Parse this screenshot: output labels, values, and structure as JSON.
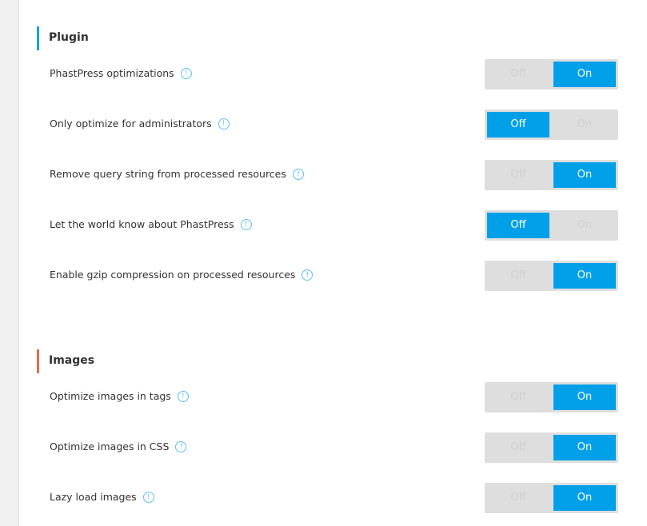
{
  "colors": {
    "plugin_accent": "#1aa4d8",
    "images_accent": "#e06b4f",
    "toggle_active": "#00a0e9",
    "toggle_track": "#dedede"
  },
  "toggle_labels": {
    "off": "Off",
    "on": "On"
  },
  "plugin": {
    "title": "Plugin",
    "settings": [
      {
        "label": "PhastPress optimizations",
        "value": "On"
      },
      {
        "label": "Only optimize for administrators",
        "value": "Off"
      },
      {
        "label": "Remove query string from processed resources",
        "value": "On"
      },
      {
        "label": "Let the world know about PhastPress",
        "value": "Off"
      },
      {
        "label": "Enable gzip compression on processed resources",
        "value": "On"
      }
    ]
  },
  "images": {
    "title": "Images",
    "settings": [
      {
        "label": "Optimize images in tags",
        "value": "On"
      },
      {
        "label": "Optimize images in CSS",
        "value": "On"
      },
      {
        "label": "Lazy load images",
        "value": "On"
      }
    ]
  },
  "icons": {
    "info": "info-circle-icon",
    "info_glyph": "!"
  }
}
